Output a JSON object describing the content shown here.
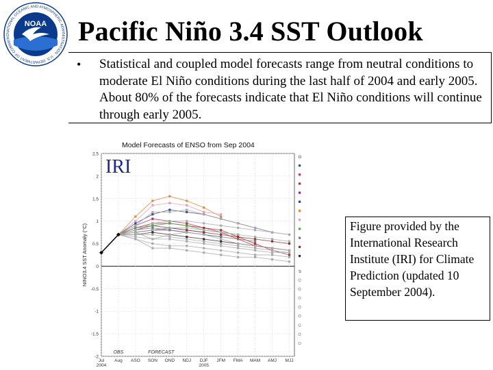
{
  "logo": {
    "text": "NOAA",
    "ring_text": "NATIONAL OCEANIC AND ATMOSPHERIC ADMINISTRATION · U.S. DEPARTMENT OF COMMERCE",
    "colors": {
      "ring": "#0b3a8c",
      "wave": "#2a6fd1",
      "bird": "#ffffff"
    }
  },
  "title": "Pacific Niño 3.4 SST Outlook",
  "bullet": {
    "symbol": "•",
    "text": "Statistical and coupled model forecasts range from neutral conditions to moderate El Niño conditions during the last half of 2004 and early 2005. About 80% of the forecasts indicate that El Niño conditions will continue through early 2005."
  },
  "credit": "Figure provided by the International Research Institute (IRI) for Climate Prediction (updated 10 September 2004).",
  "chart_data": {
    "type": "line",
    "title": "Model Forecasts of ENSO from Sep 2004",
    "watermark": "IRI",
    "ylabel": "NINO3.4 SST Anomaly (°C)",
    "ylim": [
      -2.0,
      2.5
    ],
    "y_ticks": [
      "-2",
      "-1.5",
      "-1",
      "-0.5",
      "0",
      "0.5",
      "1",
      "1.5",
      "2",
      "2.5"
    ],
    "y_tick_values": [
      -2,
      -1.5,
      -1,
      -0.5,
      0,
      0.5,
      1,
      1.5,
      2,
      2.5
    ],
    "categories": [
      "Jul",
      "Aug",
      "ASO",
      "SON",
      "OND",
      "NDJ",
      "DJF",
      "JFM",
      "FMA",
      "MAM",
      "AMJ",
      "MJJ"
    ],
    "x_labels": [
      "Jul",
      "Aug",
      "ASO",
      "SON",
      "OND",
      "NDJ",
      "DJF",
      "JFM",
      "FMA",
      "MAM",
      "AMJ",
      "MJJ"
    ],
    "year_labels": [
      {
        "label": "2004",
        "at": 0
      },
      {
        "label": "2005",
        "at": 6
      }
    ],
    "region_labels": [
      {
        "label": "OBS",
        "at": 1
      },
      {
        "label": "FORECAST",
        "at": 3.5
      }
    ],
    "observed": [
      0.3,
      0.7
    ],
    "legend": {
      "dynamical_title": "Dynamical Model",
      "statistical_title": "Statistical Model",
      "dynamical": [
        {
          "name": "NASA",
          "color": "#3a4a8f"
        },
        {
          "name": "NCEP/CMP",
          "color": "#c0305a"
        },
        {
          "name": "NCEP/CFS",
          "color": "#b03030"
        },
        {
          "name": "JMA",
          "color": "#8a2a8a"
        },
        {
          "name": "SCRIPPS",
          "color": "#2c3cb0"
        },
        {
          "name": "LDEO",
          "color": "#e08a40"
        },
        {
          "name": "AUS/POAMA",
          "color": "#e2a0b8"
        },
        {
          "name": "ECMWF",
          "color": "#4aa84a"
        },
        {
          "name": "KOREA SNU",
          "color": "#7a7a7a"
        },
        {
          "name": "ZHANG ICM",
          "color": "#8a3a2a"
        },
        {
          "name": "ECHAM/MOM",
          "color": "#3a2a2a"
        }
      ],
      "statistical": [
        {
          "name": "CPC MRKOV",
          "color": "#888888"
        },
        {
          "name": "CDC LIM",
          "color": "#888888"
        },
        {
          "name": "CPC CA",
          "color": "#888888"
        },
        {
          "name": "CPC CCA",
          "color": "#888888"
        },
        {
          "name": "CSU CLIPR",
          "color": "#888888"
        },
        {
          "name": "UBC NNET",
          "color": "#888888"
        },
        {
          "name": "FSU REGR",
          "color": "#888888"
        },
        {
          "name": "UCLA-TCD",
          "color": "#888888"
        }
      ]
    },
    "series": [
      {
        "values": [
          null,
          0.7,
          1.1,
          1.45,
          1.55,
          1.45,
          1.3,
          1.1,
          null,
          null,
          null,
          null
        ],
        "color": "#e08a40"
      },
      {
        "values": [
          null,
          0.7,
          1.0,
          1.35,
          1.4,
          1.35,
          1.2,
          1.15,
          null,
          null,
          null,
          null
        ],
        "color": "#e2a0b8"
      },
      {
        "values": [
          null,
          0.7,
          0.95,
          1.15,
          1.25,
          1.2,
          1.15,
          1.05,
          0.95,
          0.85,
          0.75,
          null
        ],
        "color": "#3a4a8f"
      },
      {
        "values": [
          null,
          0.7,
          0.9,
          1.05,
          1.0,
          0.95,
          0.85,
          0.75,
          0.6,
          0.45,
          0.4,
          null
        ],
        "color": "#c0305a"
      },
      {
        "values": [
          null,
          0.7,
          0.85,
          0.95,
          0.95,
          0.9,
          0.85,
          0.8,
          0.65,
          0.5,
          0.35,
          0.25
        ],
        "color": "#b03030"
      },
      {
        "values": [
          null,
          0.7,
          0.8,
          0.9,
          0.85,
          0.8,
          0.75,
          null,
          null,
          null,
          null,
          null
        ],
        "color": "#8a2a8a"
      },
      {
        "values": [
          null,
          0.7,
          0.75,
          0.8,
          0.8,
          0.75,
          0.7,
          0.65,
          null,
          null,
          null,
          null
        ],
        "color": "#2c3cb0"
      },
      {
        "values": [
          null,
          0.7,
          0.85,
          0.9,
          0.95,
          0.9,
          0.8,
          0.75,
          0.7,
          null,
          null,
          null
        ],
        "color": "#4aa84a"
      },
      {
        "values": [
          null,
          0.7,
          0.8,
          0.85,
          0.8,
          0.75,
          0.7,
          0.65,
          0.6,
          0.55,
          null,
          null
        ],
        "color": "#7a7a7a"
      },
      {
        "values": [
          null,
          0.7,
          0.75,
          0.8,
          0.85,
          0.8,
          0.75,
          0.7,
          0.65,
          0.6,
          0.55,
          0.5
        ],
        "color": "#8a3a2a"
      },
      {
        "values": [
          null,
          0.7,
          0.7,
          0.75,
          0.7,
          0.65,
          0.6,
          0.55,
          0.5,
          0.45,
          0.4,
          0.35
        ],
        "color": "#3a2a2a"
      },
      {
        "values": [
          null,
          0.7,
          0.9,
          1.2,
          1.2,
          1.25,
          1.15,
          1.05,
          0.95,
          0.85,
          0.75,
          0.7
        ],
        "color": "#aaaaaa"
      },
      {
        "values": [
          null,
          0.7,
          0.75,
          0.8,
          0.85,
          0.85,
          0.8,
          0.75,
          0.7,
          0.65,
          0.6,
          0.55
        ],
        "color": "#aaaaaa"
      },
      {
        "values": [
          null,
          0.7,
          0.65,
          0.6,
          0.6,
          0.55,
          0.5,
          0.45,
          0.4,
          0.35,
          0.3,
          0.3
        ],
        "color": "#aaaaaa"
      },
      {
        "values": [
          null,
          0.7,
          0.6,
          0.5,
          0.45,
          0.45,
          0.4,
          0.35,
          0.3,
          0.25,
          0.25,
          0.2
        ],
        "color": "#aaaaaa"
      },
      {
        "values": [
          null,
          0.7,
          0.7,
          0.7,
          0.65,
          0.6,
          0.55,
          0.5,
          0.45,
          0.4,
          0.35,
          0.3
        ],
        "color": "#aaaaaa"
      },
      {
        "values": [
          null,
          0.7,
          0.6,
          0.4,
          0.4,
          0.35,
          0.3,
          0.25,
          0.2,
          0.2,
          0.15,
          0.1
        ],
        "color": "#aaaaaa"
      },
      {
        "values": [
          null,
          0.7,
          0.8,
          0.95,
          1.0,
          1.0,
          0.95,
          0.9,
          0.85,
          0.8,
          0.75,
          0.7
        ],
        "color": "#aaaaaa"
      },
      {
        "values": [
          null,
          0.7,
          0.75,
          0.6,
          0.7,
          0.75,
          0.7,
          0.6,
          0.5,
          0.45,
          0.4,
          0.35
        ],
        "color": "#aaaaaa"
      }
    ]
  }
}
